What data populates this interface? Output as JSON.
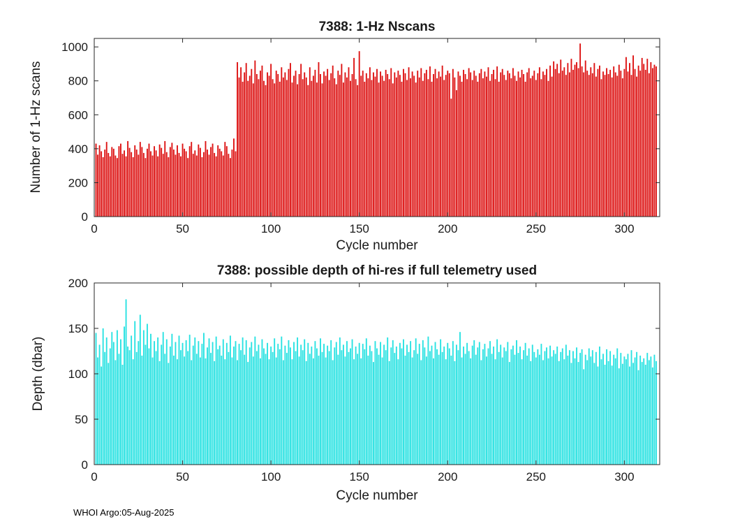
{
  "figure": {
    "footer": "WHOI Argo:05-Aug-2025"
  },
  "chart_data": [
    {
      "type": "bar",
      "title": "7388: 1-Hz Nscans",
      "xlabel": "Cycle number",
      "ylabel": "Number of 1-Hz scans",
      "bar_color": "#dd1414",
      "axis_color": "#262626",
      "xlim": [
        0,
        320
      ],
      "ylim": [
        0,
        1050
      ],
      "xticks": [
        0,
        50,
        100,
        150,
        200,
        250,
        300
      ],
      "yticks": [
        0,
        200,
        400,
        600,
        800,
        1000
      ],
      "x_start": 1,
      "legend": "none",
      "grid": "off",
      "values": [
        430,
        365,
        420,
        385,
        350,
        395,
        440,
        375,
        355,
        410,
        400,
        360,
        345,
        415,
        430,
        370,
        390,
        355,
        445,
        405,
        380,
        350,
        420,
        395,
        365,
        440,
        410,
        375,
        345,
        400,
        430,
        385,
        360,
        415,
        390,
        355,
        425,
        405,
        370,
        445,
        380,
        350,
        410,
        435,
        395,
        365,
        420,
        375,
        355,
        430,
        400,
        385,
        345,
        415,
        440,
        370,
        390,
        360,
        425,
        405,
        350,
        380,
        445,
        395,
        365,
        410,
        430,
        375,
        355,
        420,
        400,
        385,
        360,
        440,
        415,
        370,
        345,
        395,
        460,
        385,
        910,
        820,
        880,
        795,
        850,
        905,
        800,
        830,
        870,
        785,
        920,
        840,
        810,
        860,
        890,
        800,
        775,
        850,
        830,
        900,
        810,
        785,
        860,
        840,
        795,
        880,
        820,
        850,
        805,
        870,
        905,
        790,
        830,
        860,
        780,
        840,
        900,
        810,
        850,
        820,
        775,
        880,
        800,
        830,
        865,
        790,
        910,
        840,
        785,
        855,
        830,
        870,
        805,
        845,
        890,
        815,
        780,
        860,
        835,
        900,
        790,
        850,
        820,
        880,
        800,
        840,
        935,
        810,
        775,
        975,
        830,
        860,
        795,
        845,
        815,
        880,
        805,
        850,
        825,
        870,
        790,
        855,
        830,
        800,
        865,
        840,
        810,
        875,
        785,
        850,
        820,
        860,
        835,
        795,
        870,
        845,
        805,
        880,
        815,
        855,
        830,
        790,
        860,
        820,
        875,
        800,
        845,
        865,
        810,
        885,
        795,
        840,
        870,
        815,
        855,
        825,
        890,
        805,
        835,
        860,
        845,
        695,
        870,
        820,
        745,
        855,
        830,
        795,
        865,
        840,
        810,
        875,
        850,
        805,
        860,
        830,
        795,
        845,
        870,
        815,
        855,
        825,
        880,
        800,
        840,
        865,
        810,
        885,
        795,
        850,
        870,
        835,
        805,
        860,
        845,
        815,
        875,
        830,
        800,
        855,
        820,
        865,
        840,
        795,
        850,
        875,
        815,
        830,
        860,
        805,
        845,
        880,
        810,
        855,
        835,
        870,
        800,
        890,
        825,
        915,
        870,
        900,
        845,
        925,
        860,
        880,
        835,
        905,
        850,
        930,
        865,
        895,
        910,
        875,
        1020,
        885,
        850,
        920,
        860,
        835,
        880,
        845,
        905,
        825,
        870,
        890,
        810,
        855,
        835,
        875,
        840,
        865,
        820,
        885,
        850,
        830,
        895,
        860,
        815,
        870,
        940,
        855,
        905,
        835,
        950,
        870,
        825,
        890,
        860,
        935,
        900,
        865,
        930,
        845,
        910,
        875,
        895,
        885
      ]
    },
    {
      "type": "bar",
      "title": "7388: possible depth of hi-res if full telemetry used",
      "xlabel": "Cycle number",
      "ylabel": "Depth (dbar)",
      "bar_color": "#2ae2e2",
      "axis_color": "#262626",
      "xlim": [
        0,
        320
      ],
      "ylim": [
        0,
        200
      ],
      "xticks": [
        0,
        50,
        100,
        150,
        200,
        250,
        300
      ],
      "yticks": [
        0,
        50,
        100,
        150,
        200
      ],
      "x_start": 1,
      "legend": "none",
      "grid": "off",
      "values": [
        145,
        118,
        132,
        108,
        150,
        124,
        140,
        112,
        128,
        146,
        135,
        115,
        148,
        122,
        138,
        110,
        152,
        182,
        130,
        126,
        142,
        116,
        158,
        124,
        136,
        165,
        120,
        148,
        132,
        155,
        128,
        144,
        118,
        136,
        125,
        140,
        114,
        132,
        146,
        122,
        138,
        112,
        130,
        144,
        120,
        135,
        116,
        142,
        126,
        134,
        119,
        137,
        125,
        143,
        115,
        131,
        140,
        122,
        136,
        118,
        133,
        145,
        117,
        129,
        139,
        123,
        135,
        114,
        141,
        127,
        131,
        120,
        138,
        116,
        134,
        124,
        142,
        118,
        130,
        136,
        115,
        133,
        126,
        140,
        121,
        137,
        113,
        129,
        135,
        119,
        141,
        125,
        132,
        117,
        138,
        128,
        122,
        134,
        116,
        130,
        124,
        139,
        118,
        133,
        127,
        141,
        115,
        131,
        123,
        137,
        129,
        116,
        135,
        125,
        140,
        119,
        132,
        126,
        138,
        114,
        134,
        122,
        130,
        117,
        136,
        128,
        120,
        139,
        124,
        133,
        118,
        131,
        125,
        137,
        115,
        129,
        135,
        121,
        140,
        126,
        132,
        119,
        136,
        124,
        128,
        138,
        116,
        130,
        122,
        134,
        117,
        133,
        127,
        139,
        120,
        131,
        125,
        113,
        136,
        128,
        121,
        135,
        118,
        132,
        126,
        140,
        114,
        129,
        137,
        123,
        130,
        116,
        134,
        128,
        138,
        120,
        132,
        124,
        136,
        118,
        126,
        139,
        122,
        133,
        115,
        137,
        129,
        119,
        141,
        125,
        131,
        117,
        135,
        127,
        121,
        138,
        124,
        130,
        116,
        134,
        128,
        120,
        136,
        114,
        132,
        126,
        146,
        118,
        130,
        122,
        134,
        125,
        117,
        131,
        137,
        121,
        129,
        135,
        115,
        127,
        133,
        119,
        128,
        136,
        122,
        130,
        116,
        138,
        124,
        132,
        118,
        129,
        125,
        135,
        113,
        127,
        131,
        121,
        137,
        123,
        130,
        116,
        126,
        134,
        120,
        128,
        114,
        132,
        124,
        118,
        127,
        121,
        133,
        115,
        125,
        129,
        117,
        131,
        119,
        126,
        122,
        130,
        114,
        124,
        128,
        116,
        132,
        120,
        126,
        112,
        125,
        117,
        129,
        113,
        123,
        127,
        105,
        121,
        115,
        128,
        119,
        126,
        112,
        124,
        108,
        130,
        116,
        122,
        110,
        127,
        114,
        125,
        109,
        121,
        117,
        128,
        106,
        123,
        111,
        119,
        116,
        122,
        108,
        126,
        112,
        118,
        124,
        104,
        120,
        113,
        117,
        110,
        123,
        115,
        119,
        107,
        121,
        114
      ]
    }
  ]
}
